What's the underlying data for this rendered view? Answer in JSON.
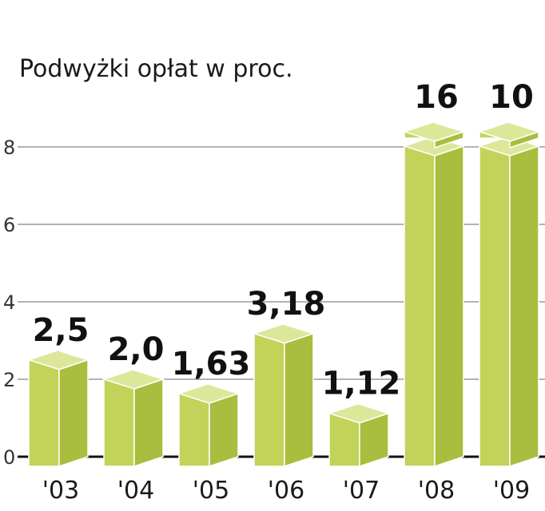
{
  "chart_data": {
    "type": "bar",
    "title": "Podwyżki opłat w proc.",
    "categories": [
      "'03",
      "'04",
      "'05",
      "'06",
      "'07",
      "'08",
      "'09"
    ],
    "values": [
      2.5,
      2.0,
      1.63,
      3.18,
      1.12,
      16,
      10
    ],
    "value_labels": [
      "2,5",
      "2,0",
      "1,63",
      "3,18",
      "1,12",
      "16",
      "10"
    ],
    "yticks": [
      0,
      2,
      4,
      6,
      8
    ],
    "ytick_labels": [
      "0",
      "2",
      "4",
      "6",
      "8"
    ],
    "ylim": [
      0,
      8
    ],
    "axis_break": true,
    "grid": true,
    "xlabel": "",
    "ylabel": "",
    "colors": {
      "bar_front": "#c3d35a",
      "bar_side": "#a9bd3e",
      "bar_top": "#dde79a",
      "grid": "#9a9a9a"
    }
  }
}
